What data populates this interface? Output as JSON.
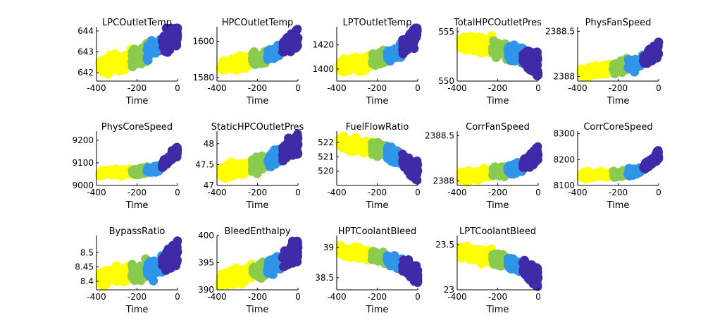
{
  "chart_data": {
    "type": "scatter",
    "xlabel": "Time",
    "colors": [
      "#FFFF00",
      "#8ACB4E",
      "#2E95E8",
      "#3F2AA8"
    ],
    "xlim": [
      -400,
      0
    ],
    "xticks": [
      "-400",
      "-200",
      "0"
    ],
    "panels": [
      {
        "title": "LPCOutletTemp",
        "ylim": [
          641.6,
          644.2
        ],
        "yticks": [
          642,
          643,
          644
        ],
        "ytick_labels": [
          "642",
          "643",
          "644"
        ],
        "trend": [
          642.3,
          642.5,
          642.8,
          643.3,
          643.9
        ],
        "spread": 0.35
      },
      {
        "title": "HPCOutletTemp",
        "ylim": [
          1578,
          1608
        ],
        "yticks": [
          1580,
          1600
        ],
        "ytick_labels": [
          "1580",
          "1600"
        ],
        "trend": [
          1586,
          1588,
          1590,
          1595,
          1602
        ],
        "spread": 3
      },
      {
        "title": "LPTOutletTemp",
        "ylim": [
          1390,
          1435
        ],
        "yticks": [
          1400,
          1420
        ],
        "ytick_labels": [
          "1400",
          "1420"
        ],
        "trend": [
          1402,
          1405,
          1408,
          1415,
          1428
        ],
        "spread": 5
      },
      {
        "title": "TotalHPCOutletPres",
        "ylim": [
          550,
          555.5
        ],
        "yticks": [
          550,
          555
        ],
        "ytick_labels": [
          "550",
          "555"
        ],
        "trend": [
          554.0,
          553.7,
          553.3,
          552.7,
          551.7
        ],
        "spread": 0.7
      },
      {
        "title": "PhysFanSpeed",
        "ylim": [
          2387.95,
          2388.55
        ],
        "yticks": [
          2388,
          2388.5
        ],
        "ytick_labels": [
          "2388",
          "2388.5"
        ],
        "trend": [
          2388.05,
          2388.07,
          2388.1,
          2388.15,
          2388.3
        ],
        "spread": 0.05
      },
      {
        "title": "PhysCoreSpeed",
        "ylim": [
          9000,
          9240
        ],
        "yticks": [
          9000,
          9100,
          9200
        ],
        "ytick_labels": [
          "9000",
          "9100",
          "9200"
        ],
        "trend": [
          9055,
          9058,
          9062,
          9075,
          9150
        ],
        "spread": 12
      },
      {
        "title": "StaticHPCOutletPres",
        "ylim": [
          47,
          48.3
        ],
        "yticks": [
          47,
          47.5,
          48
        ],
        "ytick_labels": [
          "47",
          "47.5",
          "48"
        ],
        "trend": [
          47.3,
          47.4,
          47.5,
          47.7,
          48.0
        ],
        "spread": 0.15
      },
      {
        "title": "FuelFlowRatio",
        "ylim": [
          519,
          522.8
        ],
        "yticks": [
          520,
          521,
          522
        ],
        "ytick_labels": [
          "520",
          "521",
          "522"
        ],
        "trend": [
          522.0,
          521.8,
          521.5,
          521.0,
          520.0
        ],
        "spread": 0.4
      },
      {
        "title": "CorrFanSpeed",
        "ylim": [
          2387.95,
          2388.55
        ],
        "yticks": [
          2388,
          2388.5
        ],
        "ytick_labels": [
          "2388",
          "2388.5"
        ],
        "trend": [
          2388.05,
          2388.07,
          2388.1,
          2388.15,
          2388.3
        ],
        "spread": 0.05
      },
      {
        "title": "CorrCoreSpeed",
        "ylim": [
          8100,
          8310
        ],
        "yticks": [
          8100,
          8200,
          8300
        ],
        "ytick_labels": [
          "8100",
          "8200",
          "8300"
        ],
        "trend": [
          8140,
          8142,
          8145,
          8155,
          8220
        ],
        "spread": 10
      },
      {
        "title": "BypassRatio",
        "ylim": [
          8.37,
          8.56
        ],
        "yticks": [
          8.4,
          8.45,
          8.5
        ],
        "ytick_labels": [
          "8.4",
          "8.45",
          "8.5"
        ],
        "trend": [
          8.41,
          8.42,
          8.43,
          8.45,
          8.5
        ],
        "spread": 0.025
      },
      {
        "title": "BleedEnthalpy",
        "ylim": [
          390,
          400
        ],
        "yticks": [
          390,
          395,
          400
        ],
        "ytick_labels": [
          "390",
          "395",
          "400"
        ],
        "trend": [
          392,
          392.7,
          393.5,
          395,
          397
        ],
        "spread": 1.2
      },
      {
        "title": "HPTCoolantBleed",
        "ylim": [
          38.3,
          39.2
        ],
        "yticks": [
          38.5,
          39
        ],
        "ytick_labels": [
          "38.5",
          "39"
        ],
        "trend": [
          38.95,
          38.9,
          38.85,
          38.75,
          38.55
        ],
        "spread": 0.08
      },
      {
        "title": "LPTCoolantBleed",
        "ylim": [
          23,
          23.6
        ],
        "yticks": [
          23,
          23.5
        ],
        "ytick_labels": [
          "23",
          "23.5"
        ],
        "trend": [
          23.42,
          23.38,
          23.34,
          23.27,
          23.13
        ],
        "spread": 0.06
      }
    ]
  }
}
